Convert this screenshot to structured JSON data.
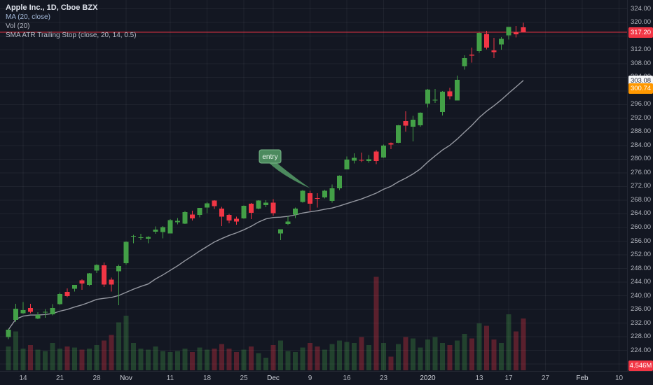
{
  "legend": {
    "title": "Apple Inc., 1D, Cboe BZX",
    "indicators": [
      "MA (20, close)",
      "Vol (20)",
      "SMA ATR Trailing Stop (close, 20, 14, 0.5)"
    ]
  },
  "price_axis": {
    "ticks": [
      324,
      320,
      316,
      312,
      308,
      304,
      300,
      296,
      292,
      288,
      284,
      280,
      276,
      272,
      268,
      264,
      260,
      256,
      252,
      248,
      244,
      240,
      236,
      232,
      228,
      224,
      220
    ],
    "badges": [
      {
        "name": "last-price",
        "label": "317.20",
        "value": 317.2,
        "bg": "#f23645",
        "fg": "#ffffff"
      },
      {
        "name": "ma-value",
        "label": "303.08",
        "value": 303.08,
        "bg": "#f5f6f8",
        "fg": "#1c2030"
      },
      {
        "name": "atr-stop-value",
        "label": "300.74",
        "value": 300.74,
        "bg": "#ff9800",
        "fg": "#ffffff"
      },
      {
        "name": "last-volume",
        "label": "4.546M",
        "position": "bottom",
        "bg": "#f23645",
        "fg": "#ffffff"
      }
    ]
  },
  "time_axis": {
    "ticks": [
      {
        "label": "14",
        "index": 2
      },
      {
        "label": "21",
        "index": 7
      },
      {
        "label": "28",
        "index": 12
      },
      {
        "label": "Nov",
        "index": 16,
        "major": true
      },
      {
        "label": "11",
        "index": 22
      },
      {
        "label": "18",
        "index": 27
      },
      {
        "label": "25",
        "index": 32
      },
      {
        "label": "Dec",
        "index": 36,
        "major": true
      },
      {
        "label": "9",
        "index": 41
      },
      {
        "label": "16",
        "index": 46
      },
      {
        "label": "23",
        "index": 51
      },
      {
        "label": "2020",
        "index": 57,
        "major": true
      },
      {
        "label": "13",
        "index": 64
      },
      {
        "label": "17",
        "index": 68
      },
      {
        "label": "27",
        "index": 73
      },
      {
        "label": "Feb",
        "index": 78,
        "major": true
      },
      {
        "label": "10",
        "index": 83
      }
    ]
  },
  "chart_data": {
    "type": "candlestick",
    "title": "Apple Inc., 1D, Cboe BZX",
    "symbol": "Apple Inc.",
    "interval": "1D",
    "exchange": "Cboe BZX",
    "price_line": 317.2,
    "ylim": [
      218,
      327
    ],
    "grid": true,
    "colors": {
      "up": "#43a047",
      "down": "#f23645",
      "vol_up": "rgba(67,160,71,0.32)",
      "vol_down": "rgba(242,54,69,0.32)",
      "grid": "rgba(255,255,255,0.055)",
      "price_line": "#f23645"
    },
    "overlays": [
      {
        "name": "MA",
        "type": "sma",
        "length": 20,
        "source": "close",
        "color": "#9598a1",
        "last_value": 303.08
      },
      {
        "name": "SMA ATR Trailing Stop",
        "params": "close, 20, 14, 0.5",
        "color": "#ff9800",
        "last_value": 300.74
      }
    ],
    "columns": [
      "date",
      "open",
      "high",
      "low",
      "close",
      "volume_m"
    ],
    "candles": [
      [
        "Oct 10",
        227.93,
        230.44,
        227.3,
        230.09,
        2.1
      ],
      [
        "Oct 11",
        232.95,
        237.64,
        232.31,
        236.21,
        3.4
      ],
      [
        "Oct 14",
        234.9,
        238.13,
        234.67,
        235.87,
        1.9
      ],
      [
        "Oct 15",
        236.39,
        237.65,
        234.88,
        235.32,
        2.2
      ],
      [
        "Oct 16",
        233.37,
        235.24,
        233.2,
        234.37,
        1.8
      ],
      [
        "Oct 17",
        235.09,
        236.15,
        233.52,
        235.28,
        1.7
      ],
      [
        "Oct 18",
        234.59,
        237.58,
        234.29,
        236.41,
        2.4
      ],
      [
        "Oct 21",
        237.52,
        240.99,
        237.32,
        240.51,
        1.9
      ],
      [
        "Oct 22",
        241.16,
        242.2,
        239.62,
        239.96,
        2.1
      ],
      [
        "Oct 23",
        242.1,
        243.24,
        241.22,
        243.18,
        2.0
      ],
      [
        "Oct 24",
        244.51,
        244.8,
        241.81,
        243.58,
        1.8
      ],
      [
        "Oct 25",
        243.16,
        246.73,
        242.88,
        246.58,
        1.9
      ],
      [
        "Oct 28",
        247.42,
        249.25,
        246.72,
        249.05,
        2.2
      ],
      [
        "Oct 29",
        248.97,
        249.75,
        242.57,
        243.29,
        2.6
      ],
      [
        "Oct 30",
        244.76,
        245.3,
        241.21,
        243.26,
        3.1
      ],
      [
        "Oct 31",
        247.24,
        249.17,
        237.26,
        248.76,
        4.2
      ],
      [
        "Nov 1",
        249.54,
        255.93,
        249.16,
        255.82,
        4.8
      ],
      [
        "Nov 4",
        257.33,
        257.85,
        255.38,
        257.5,
        2.4
      ],
      [
        "Nov 5",
        257.05,
        258.19,
        256.32,
        257.13,
        1.9
      ],
      [
        "Nov 6",
        256.77,
        257.49,
        255.37,
        257.24,
        1.8
      ],
      [
        "Nov 7",
        258.74,
        260.35,
        258.11,
        259.43,
        2.1
      ],
      [
        "Nov 8",
        258.69,
        260.44,
        256.85,
        260.14,
        1.7
      ],
      [
        "Nov 11",
        258.3,
        262.47,
        258.28,
        262.2,
        1.6
      ],
      [
        "Nov 12",
        261.55,
        262.79,
        260.92,
        261.96,
        1.7
      ],
      [
        "Nov 13",
        261.13,
        264.78,
        261.07,
        264.47,
        1.9
      ],
      [
        "Nov 14",
        263.75,
        264.88,
        262.1,
        262.64,
        1.6
      ],
      [
        "Nov 15",
        263.68,
        265.78,
        263.01,
        265.76,
        2.0
      ],
      [
        "Nov 18",
        265.8,
        267.43,
        264.23,
        267.1,
        1.8
      ],
      [
        "Nov 19",
        267.9,
        268.0,
        265.39,
        266.29,
        1.9
      ],
      [
        "Nov 20",
        265.54,
        266.08,
        260.4,
        263.19,
        2.3
      ],
      [
        "Nov 21",
        263.69,
        264.01,
        261.18,
        262.01,
        1.9
      ],
      [
        "Nov 22",
        262.59,
        263.18,
        260.84,
        261.78,
        1.6
      ],
      [
        "Nov 25",
        262.71,
        266.44,
        262.52,
        266.37,
        1.8
      ],
      [
        "Nov 26",
        266.94,
        267.16,
        262.5,
        264.29,
        2.1
      ],
      [
        "Nov 27",
        265.58,
        267.98,
        265.31,
        267.84,
        1.5
      ],
      [
        "Nov 29",
        266.6,
        268.0,
        265.9,
        267.25,
        1.1
      ],
      [
        "Dec 2",
        267.27,
        268.25,
        263.45,
        264.16,
        2.2
      ],
      [
        "Dec 3",
        258.31,
        259.53,
        256.29,
        259.45,
        2.6
      ],
      [
        "Dec 4",
        261.07,
        263.31,
        260.68,
        261.74,
        1.7
      ],
      [
        "Dec 5",
        263.79,
        265.89,
        262.73,
        265.58,
        1.6
      ],
      [
        "Dec 6",
        267.48,
        271.0,
        267.3,
        270.71,
        2.0
      ],
      [
        "Dec 9",
        270.0,
        270.8,
        264.91,
        266.92,
        2.4
      ],
      [
        "Dec 10",
        268.6,
        270.07,
        265.86,
        268.48,
        2.1
      ],
      [
        "Dec 11",
        268.81,
        271.1,
        268.5,
        270.77,
        1.8
      ],
      [
        "Dec 12",
        267.78,
        272.56,
        267.32,
        271.46,
        2.3
      ],
      [
        "Dec 13",
        271.46,
        275.3,
        270.93,
        275.15,
        2.6
      ],
      [
        "Dec 16",
        277.0,
        280.79,
        276.98,
        279.86,
        2.5
      ],
      [
        "Dec 17",
        279.57,
        281.77,
        278.8,
        280.41,
        2.4
      ],
      [
        "Dec 18",
        279.8,
        281.9,
        279.12,
        279.74,
        2.9
      ],
      [
        "Dec 19",
        279.5,
        281.18,
        278.95,
        280.02,
        2.2
      ],
      [
        "Dec 20",
        282.23,
        282.65,
        278.56,
        279.44,
        8.2
      ],
      [
        "Dec 23",
        280.53,
        284.25,
        280.37,
        284.0,
        2.4
      ],
      [
        "Dec 24",
        284.69,
        284.89,
        282.92,
        284.27,
        1.2
      ],
      [
        "Dec 26",
        284.82,
        289.98,
        284.7,
        289.91,
        2.3
      ],
      [
        "Dec 27",
        291.12,
        293.97,
        288.12,
        289.8,
        2.9
      ],
      [
        "Dec 30",
        289.46,
        292.69,
        285.22,
        291.52,
        2.8
      ],
      [
        "Dec 31",
        289.93,
        293.68,
        289.52,
        293.65,
        2.0
      ],
      [
        "Jan 2",
        296.24,
        300.6,
        295.19,
        300.35,
        2.7
      ],
      [
        "Jan 3",
        297.15,
        300.58,
        296.5,
        297.43,
        2.9
      ],
      [
        "Jan 6",
        293.79,
        299.96,
        292.75,
        299.8,
        2.4
      ],
      [
        "Jan 7",
        299.84,
        300.9,
        297.48,
        298.39,
        2.2
      ],
      [
        "Jan 8",
        297.16,
        304.44,
        297.16,
        303.19,
        2.6
      ],
      [
        "Jan 9",
        307.24,
        310.43,
        306.2,
        309.63,
        3.2
      ],
      [
        "Jan 10",
        310.6,
        312.67,
        308.25,
        310.33,
        2.8
      ],
      [
        "Jan 13",
        311.64,
        317.07,
        311.15,
        316.96,
        4.1
      ],
      [
        "Jan 14",
        316.7,
        317.57,
        312.17,
        312.68,
        3.9
      ],
      [
        "Jan 15",
        311.85,
        315.5,
        309.55,
        311.34,
        2.7
      ],
      [
        "Jan 16",
        313.59,
        315.7,
        312.09,
        315.24,
        2.4
      ],
      [
        "Jan 17",
        316.27,
        318.74,
        315.0,
        318.73,
        4.9
      ],
      [
        "Jan 21",
        317.19,
        319.02,
        315.63,
        316.57,
        3.4
      ],
      [
        "Jan 22",
        318.58,
        319.99,
        317.31,
        317.2,
        4.546
      ]
    ],
    "annotations": [
      {
        "type": "callout",
        "text": "entry",
        "anchor_index": 41,
        "anchor_price": 271.5,
        "box": {
          "x": 370,
          "y": 214,
          "w": 31,
          "h": 19
        },
        "fill": "#4c8a5e",
        "border": "#7ab98a",
        "text_color": "#e9f3ec"
      }
    ]
  }
}
